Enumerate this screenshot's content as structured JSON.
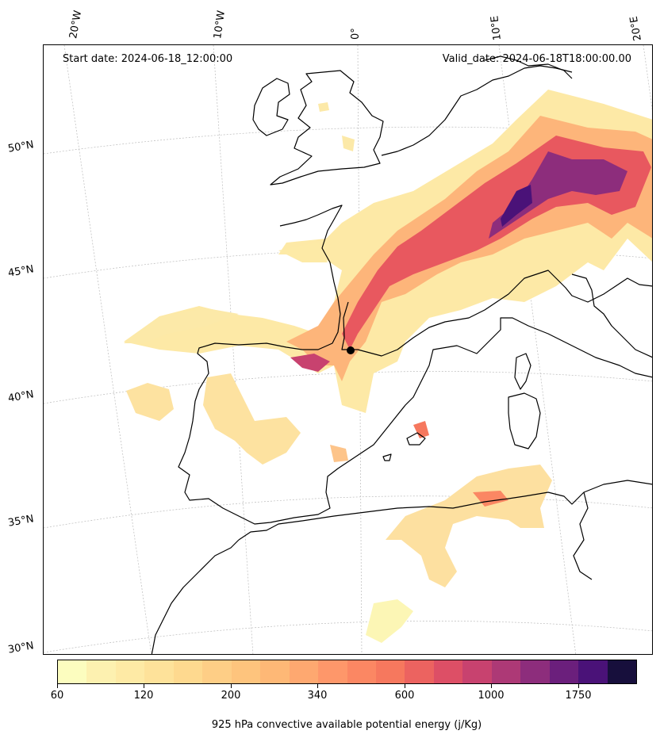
{
  "header": {
    "start_date": "Start date: 2024-06-18_12:00:00",
    "valid_date": "Valid_date: 2024-06-18T18:00:00.00"
  },
  "longitude_labels": [
    "20°W",
    "10°W",
    "0°",
    "10°E",
    "20°E"
  ],
  "latitude_labels": [
    "50°N",
    "45°N",
    "40°N",
    "35°N",
    "30°N"
  ],
  "colorbar": {
    "label": "925 hPa convective available potential energy (j/Kg)",
    "tick_labels": [
      "60",
      "120",
      "200",
      "340",
      "600",
      "1000",
      "1750"
    ],
    "colors": [
      "#fcfdbf",
      "#fdf1b0",
      "#feeaa5",
      "#fee29a",
      "#fed98f",
      "#fece86",
      "#fec47d",
      "#feb876",
      "#fea870",
      "#fe976a",
      "#fb8763",
      "#f6785e",
      "#ec6360",
      "#dd4f66",
      "#c8426f",
      "#ad3976",
      "#8d2d7c",
      "#6b1f7c",
      "#4a1278",
      "#170f3c"
    ],
    "scale": "nonlinear"
  }
}
